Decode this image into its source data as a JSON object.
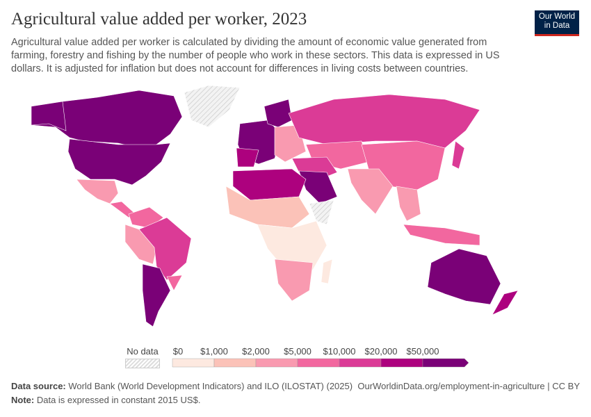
{
  "title": "Agricultural value added per worker, 2023",
  "subtitle": "Agricultural value added per worker is calculated by dividing the amount of economic value generated from farming, forestry and fishing by the number of people who work in these sectors. This data is expressed in US dollars. It is adjusted for inflation but does not account for differences in living costs between countries.",
  "logo": {
    "line1": "Our World",
    "line2": "in Data"
  },
  "chart_data": {
    "type": "choropleth",
    "title": "Agricultural value added per worker, 2023",
    "no_data_label": "No data",
    "legend_ticks": [
      "$0",
      "$1,000",
      "$2,000",
      "$5,000",
      "$10,000",
      "$20,000",
      "$50,000"
    ],
    "bin_colors": [
      "#fde9e0",
      "#fbc2b8",
      "#f99ab0",
      "#f2679f",
      "#db3b96",
      "#ad017e",
      "#7a0177"
    ],
    "no_data_color": "#e6e6e6"
  },
  "footer": {
    "source_label": "Data source:",
    "source": "World Bank (World Development Indicators) and ILO (ILOSTAT) (2025)",
    "url": "OurWorldinData.org/employment-in-agriculture | CC BY",
    "note_label": "Note:",
    "note": "Data is expressed in constant 2015 US$."
  }
}
